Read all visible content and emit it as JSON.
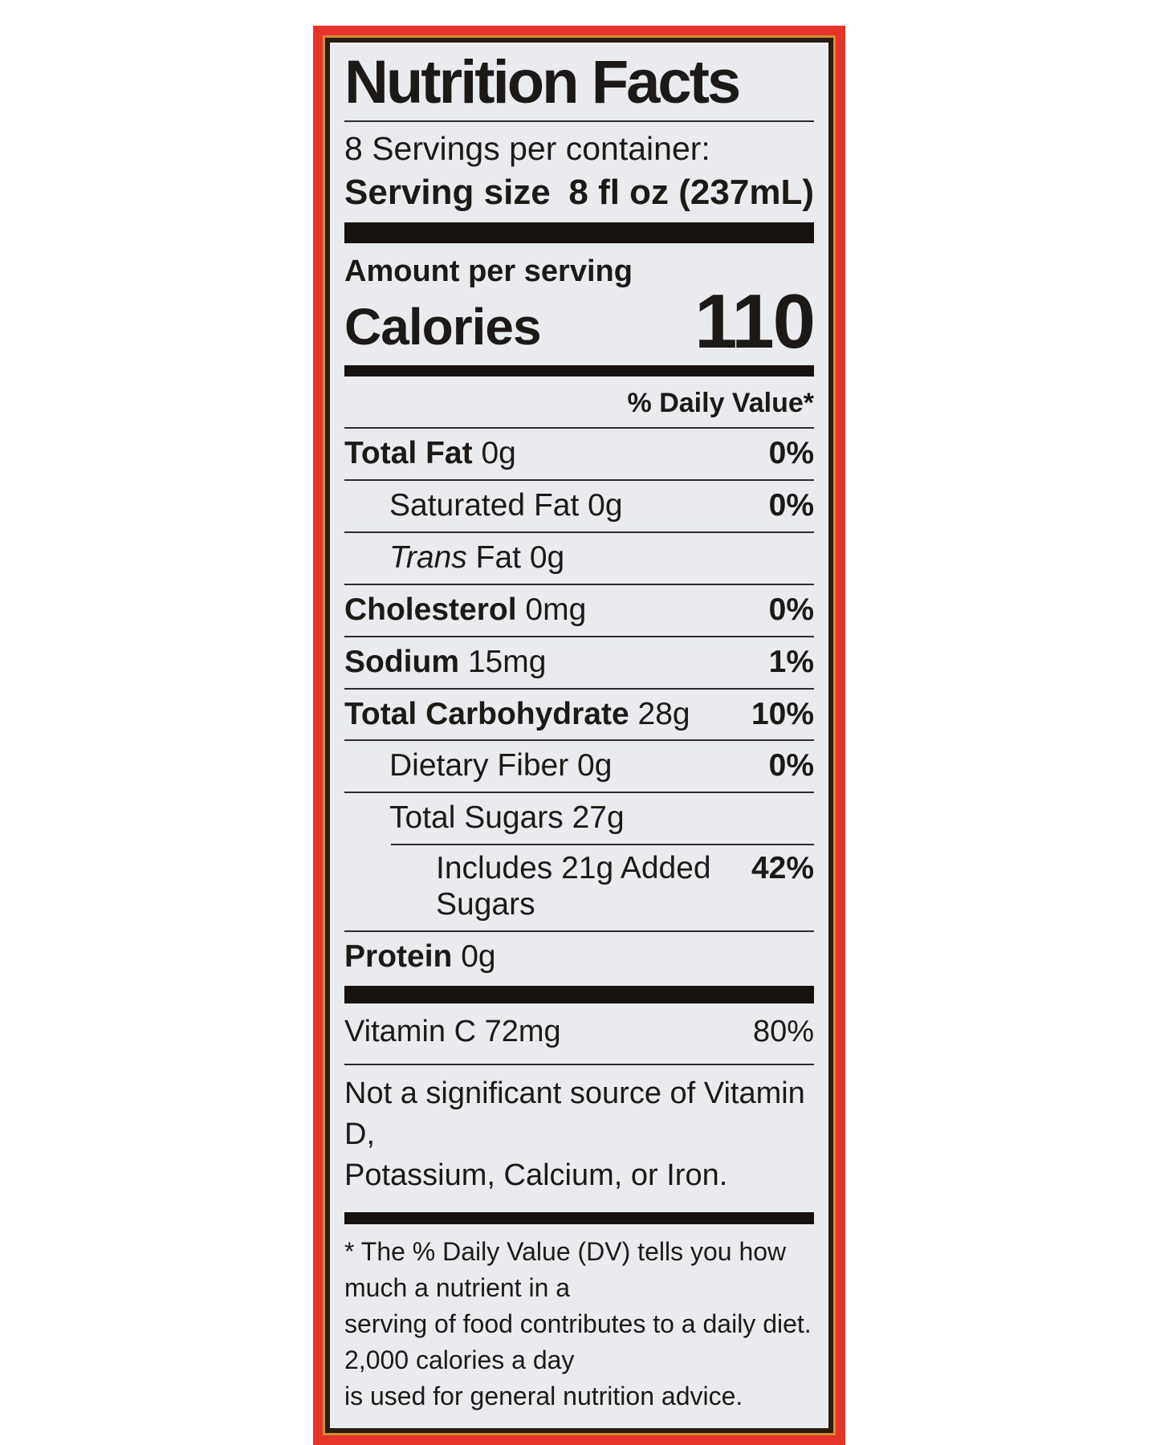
{
  "title": "Nutrition Facts",
  "servings_per_container": "8 Servings per container:",
  "serving_size": {
    "label": "Serving size",
    "value": "8 fl oz (237mL)"
  },
  "calories": {
    "header": "Amount per serving",
    "label": "Calories",
    "value": "110"
  },
  "daily_value_header": "% Daily Value*",
  "rows": [
    {
      "italic": "",
      "bold": "Total Fat",
      "rest": "0g",
      "dv": "0%"
    },
    {
      "italic": "",
      "bold": "",
      "rest": "Saturated Fat 0g",
      "dv": "0%"
    },
    {
      "italic": "Trans",
      "bold": "",
      "rest": "Fat 0g",
      "dv": ""
    },
    {
      "italic": "",
      "bold": "Cholesterol",
      "rest": "0mg",
      "dv": "0%"
    },
    {
      "italic": "",
      "bold": "Sodium",
      "rest": "15mg",
      "dv": "1%"
    },
    {
      "italic": "",
      "bold": "Total Carbohydrate",
      "rest": "28g",
      "dv": "10%"
    },
    {
      "italic": "",
      "bold": "",
      "rest": "Dietary Fiber 0g",
      "dv": "0%"
    },
    {
      "italic": "",
      "bold": "",
      "rest": "Total Sugars 27g",
      "dv": ""
    },
    {
      "italic": "",
      "bold": "",
      "rest": "Includes 21g Added Sugars",
      "dv": "42%"
    },
    {
      "italic": "",
      "bold": "Protein",
      "rest": "0g",
      "dv": ""
    }
  ],
  "vitamin": {
    "name": "Vitamin C 72mg",
    "dv": "80%"
  },
  "not_significant_lines": [
    "Not a significant source of Vitamin D,",
    "Potassium, Calcium, or Iron."
  ],
  "footnote_lines": [
    "* The % Daily Value (DV) tells you how much a nutrient in a",
    "serving of food contributes to a daily diet. 2,000 calories a day",
    "is used for general nutrition advice."
  ],
  "colors": {
    "package_red": "#e7342b",
    "gold_frame": "#cf8f2e",
    "dark_frame": "#2a1c10",
    "label_background": "#eaebee",
    "text": "#1d1916"
  }
}
